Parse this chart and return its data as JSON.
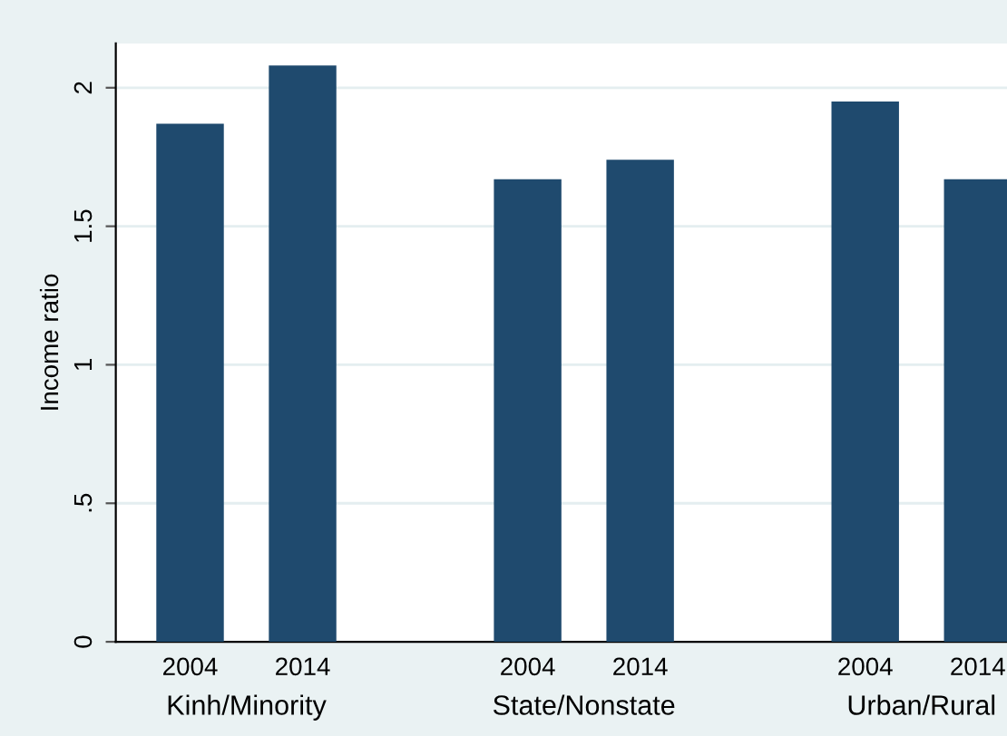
{
  "chart_data": {
    "type": "bar",
    "ylabel": "Income ratio",
    "categories": [
      "2004",
      "2014",
      null,
      "2004",
      "2014",
      null,
      "2004",
      "2014"
    ],
    "values": [
      1.87,
      2.08,
      null,
      1.67,
      1.74,
      null,
      1.95,
      1.67
    ],
    "color": "#1f4a6e",
    "ylim": [
      0,
      2.16
    ],
    "yticks": [
      0,
      {
        "value": 0.5,
        "label": ".5"
      },
      1,
      1.5,
      2
    ],
    "grid": "y",
    "annotations": [
      "Kinh/Minority",
      "State/Nonstate",
      "Urban/Rural"
    ]
  }
}
